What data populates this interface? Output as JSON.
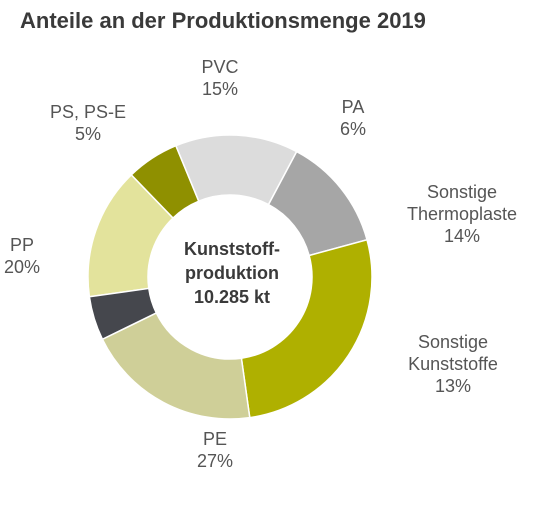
{
  "title": "Anteile an der Produktionsmenge 2019",
  "chart_data": {
    "type": "pie",
    "title": "Anteile an der Produktionsmenge 2019",
    "center_text": [
      "Kunststoff-",
      "produktion",
      "10.285 kt"
    ],
    "slices": [
      {
        "label": [
          "PVC"
        ],
        "value": 15,
        "value_text": "15%",
        "color": "#e3e39c"
      },
      {
        "label": [
          "PA"
        ],
        "value": 6,
        "value_text": "6%",
        "color": "#8f9000"
      },
      {
        "label": [
          "Sonstige",
          "Thermoplaste"
        ],
        "value": 14,
        "value_text": "14%",
        "color": "#dcdcdc"
      },
      {
        "label": [
          "Sonstige",
          "Kunststoffe"
        ],
        "value": 13,
        "value_text": "13%",
        "color": "#a6a6a6"
      },
      {
        "label": [
          "PE"
        ],
        "value": 27,
        "value_text": "27%",
        "color": "#afb000"
      },
      {
        "label": [
          "PP"
        ],
        "value": 20,
        "value_text": "20%",
        "color": "#cfcf98"
      },
      {
        "label": [
          "PS, PS-E"
        ],
        "value": 5,
        "value_text": "5%",
        "color": "#45474d"
      }
    ]
  }
}
